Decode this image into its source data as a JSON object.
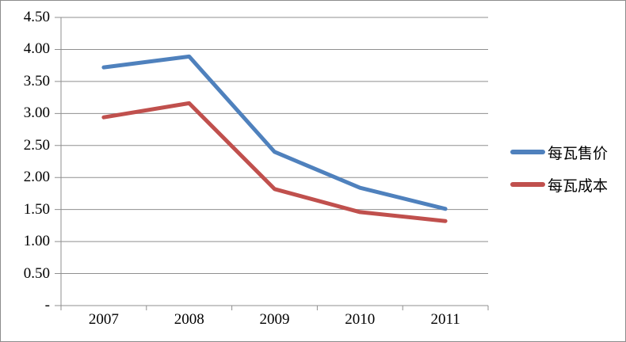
{
  "chart_data": {
    "type": "line",
    "title": "",
    "xlabel": "",
    "ylabel": "",
    "categories": [
      "2007",
      "2008",
      "2009",
      "2010",
      "2011"
    ],
    "series": [
      {
        "name": "每瓦售价",
        "color": "#4F81BD",
        "values": [
          3.72,
          3.89,
          2.4,
          1.84,
          1.51
        ]
      },
      {
        "name": "每瓦成本",
        "color": "#C0504D",
        "values": [
          2.94,
          3.16,
          1.82,
          1.46,
          1.32
        ]
      }
    ],
    "ylim": [
      0,
      4.5
    ],
    "y_tick_values": [
      4.5,
      4.0,
      3.5,
      3.0,
      2.5,
      2.0,
      1.5,
      1.0,
      0.5,
      0
    ],
    "y_tick_labels": [
      "4.50",
      "4.00",
      "3.50",
      "3.00",
      "2.50",
      "2.00",
      "1.50",
      "1.00",
      "0.50",
      "-"
    ],
    "grid": true,
    "gridline_color": "#8f8f8f",
    "axis_color": "#8f8f8f",
    "legend_position": "right"
  }
}
